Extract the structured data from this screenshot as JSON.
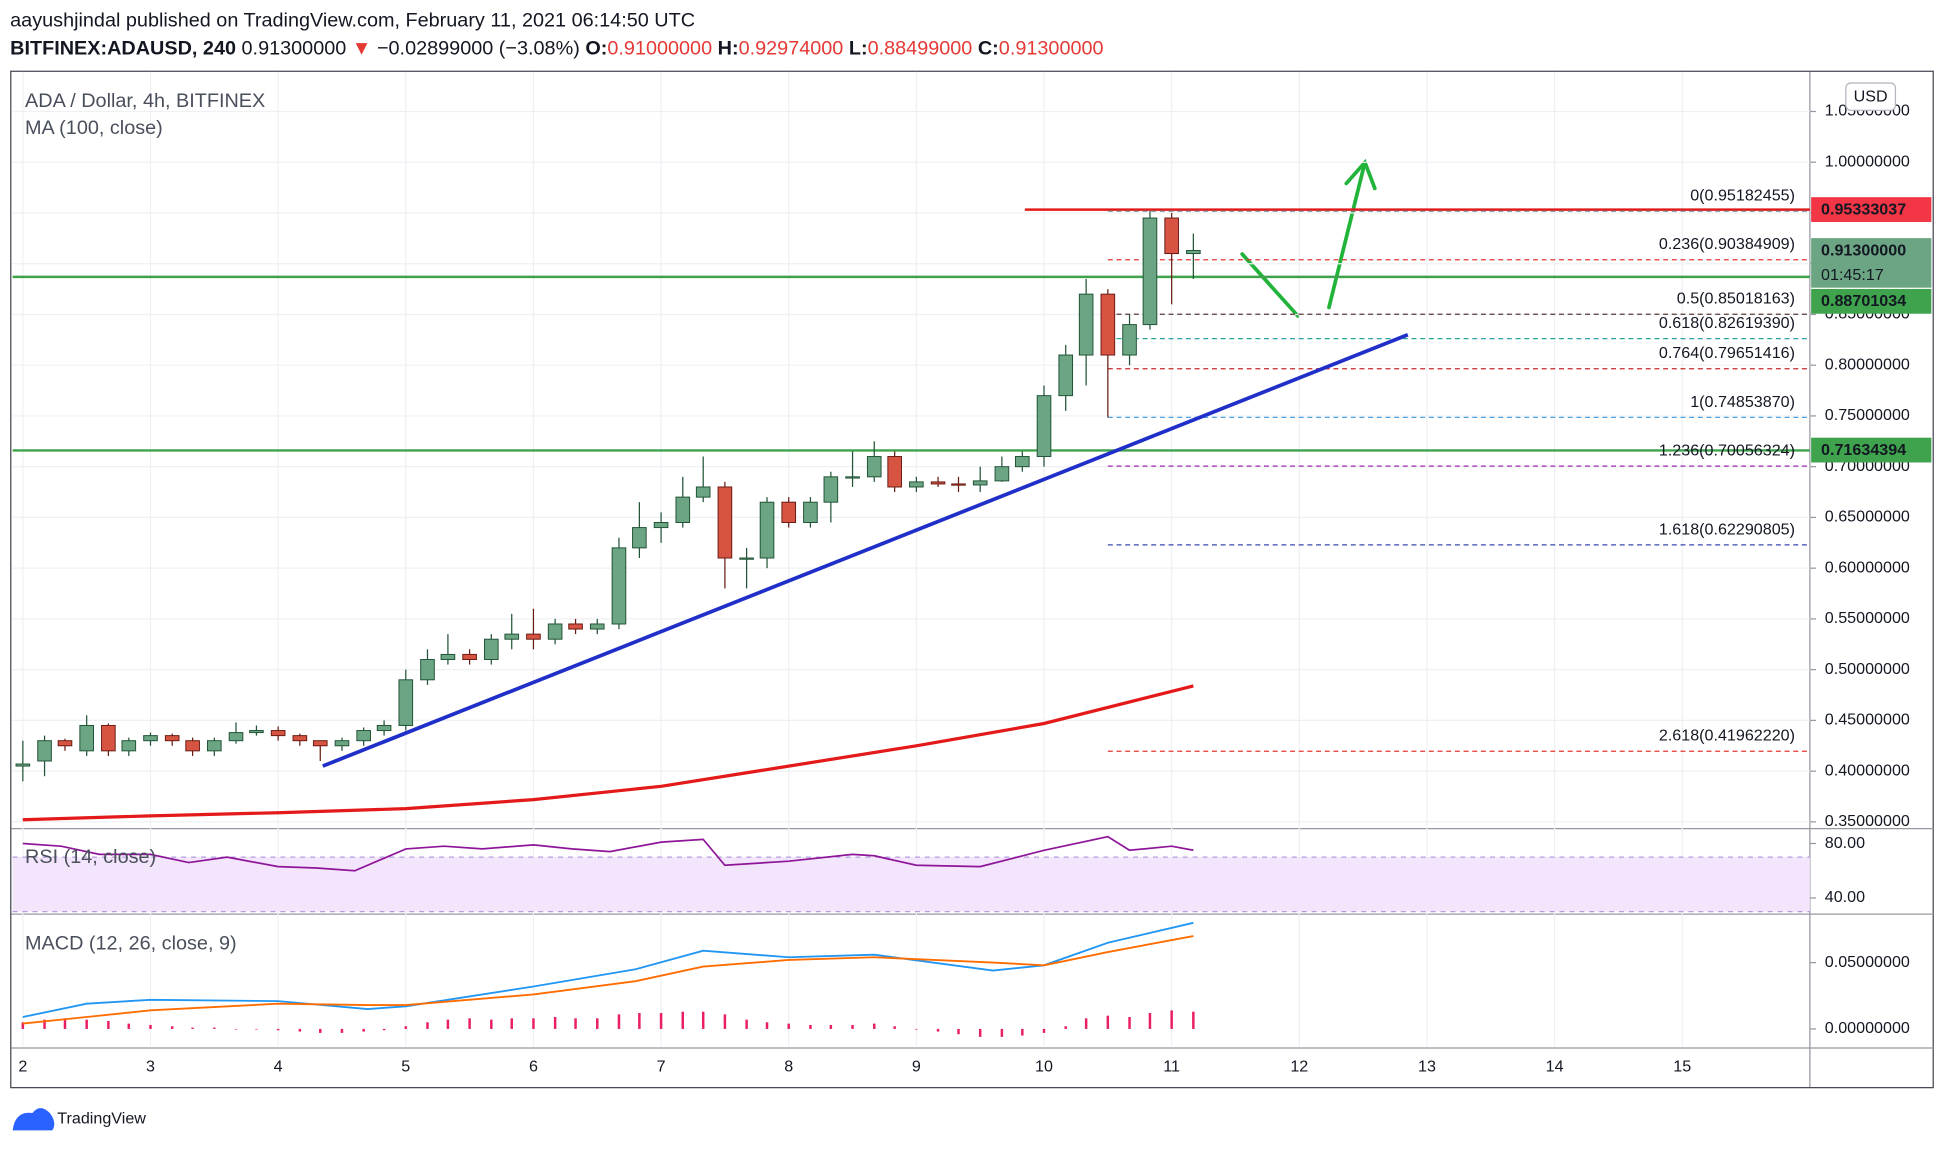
{
  "header": {
    "published": "aayushjindal published on TradingView.com, February 11, 2021 06:14:50 UTC",
    "symbol": "BITFINEX:ADAUSD, 240",
    "last": "0.91300000",
    "arrow": "▼",
    "change": "−0.02899000 (−3.08%)",
    "ohlc": [
      {
        "key": "O:",
        "value": "0.91000000"
      },
      {
        "key": "H:",
        "value": "0.92974000"
      },
      {
        "key": "L:",
        "value": "0.88499000"
      },
      {
        "key": "C:",
        "value": "0.91300000"
      }
    ]
  },
  "chart_data": {
    "type": "candlestick",
    "title": "ADA / Dollar, 4h, BITFINEX",
    "currency": "USD",
    "up_color": "#6ba583",
    "down_color": "#d75442",
    "x": [
      2,
      2.17,
      2.33,
      2.5,
      2.67,
      2.83,
      3,
      3.17,
      3.33,
      3.5,
      3.67,
      3.83,
      4,
      4.17,
      4.33,
      4.5,
      4.67,
      4.83,
      5,
      5.17,
      5.33,
      5.5,
      5.67,
      5.83,
      6,
      6.17,
      6.33,
      6.5,
      6.67,
      6.83,
      7,
      7.17,
      7.33,
      7.5,
      7.67,
      7.83,
      8,
      8.17,
      8.33,
      8.5,
      8.67,
      8.83,
      9,
      9.17,
      9.33,
      9.5,
      9.67,
      9.83,
      10,
      10.17,
      10.33,
      10.5,
      10.67,
      10.83,
      11,
      11.17
    ],
    "open": [
      0.405,
      0.41,
      0.43,
      0.42,
      0.445,
      0.42,
      0.43,
      0.435,
      0.43,
      0.42,
      0.43,
      0.438,
      0.44,
      0.435,
      0.43,
      0.425,
      0.43,
      0.44,
      0.445,
      0.49,
      0.51,
      0.515,
      0.51,
      0.53,
      0.535,
      0.53,
      0.545,
      0.54,
      0.545,
      0.62,
      0.64,
      0.645,
      0.67,
      0.68,
      0.61,
      0.61,
      0.665,
      0.645,
      0.665,
      0.69,
      0.69,
      0.71,
      0.68,
      0.685,
      0.683,
      0.682,
      0.686,
      0.7,
      0.71,
      0.77,
      0.81,
      0.87,
      0.81,
      0.84,
      0.945,
      0.91
    ],
    "high": [
      0.43,
      0.435,
      0.432,
      0.455,
      0.447,
      0.433,
      0.438,
      0.437,
      0.433,
      0.433,
      0.448,
      0.445,
      0.444,
      0.437,
      0.43,
      0.433,
      0.443,
      0.45,
      0.5,
      0.52,
      0.535,
      0.52,
      0.535,
      0.555,
      0.56,
      0.55,
      0.55,
      0.55,
      0.63,
      0.665,
      0.655,
      0.69,
      0.71,
      0.685,
      0.62,
      0.67,
      0.67,
      0.67,
      0.695,
      0.715,
      0.725,
      0.715,
      0.69,
      0.69,
      0.69,
      0.7,
      0.71,
      0.715,
      0.78,
      0.82,
      0.885,
      0.875,
      0.85,
      0.952,
      0.95,
      0.92974
    ],
    "low": [
      0.39,
      0.395,
      0.42,
      0.415,
      0.415,
      0.415,
      0.425,
      0.425,
      0.415,
      0.415,
      0.427,
      0.435,
      0.43,
      0.425,
      0.41,
      0.42,
      0.425,
      0.435,
      0.44,
      0.485,
      0.505,
      0.505,
      0.505,
      0.52,
      0.52,
      0.525,
      0.535,
      0.535,
      0.54,
      0.61,
      0.625,
      0.64,
      0.665,
      0.58,
      0.58,
      0.6,
      0.64,
      0.64,
      0.645,
      0.68,
      0.685,
      0.675,
      0.675,
      0.68,
      0.675,
      0.675,
      0.685,
      0.695,
      0.7,
      0.755,
      0.78,
      0.7485,
      0.8,
      0.835,
      0.86,
      0.88499
    ],
    "close": [
      0.407,
      0.43,
      0.425,
      0.445,
      0.42,
      0.43,
      0.435,
      0.43,
      0.42,
      0.43,
      0.438,
      0.44,
      0.435,
      0.43,
      0.425,
      0.43,
      0.44,
      0.445,
      0.49,
      0.51,
      0.515,
      0.51,
      0.53,
      0.535,
      0.53,
      0.545,
      0.54,
      0.545,
      0.62,
      0.64,
      0.645,
      0.67,
      0.68,
      0.61,
      0.61,
      0.665,
      0.645,
      0.665,
      0.69,
      0.69,
      0.71,
      0.68,
      0.685,
      0.683,
      0.682,
      0.686,
      0.7,
      0.71,
      0.77,
      0.81,
      0.87,
      0.81,
      0.84,
      0.945,
      0.91,
      0.913
    ],
    "xlim": [
      1.92,
      16.0
    ],
    "xticks": [
      2,
      3,
      4,
      5,
      6,
      7,
      8,
      9,
      10,
      11,
      12,
      13,
      14,
      15
    ],
    "ylim": [
      0.344,
      1.089
    ],
    "yticks": [
      {
        "value": 0.35,
        "label": "0.35000000"
      },
      {
        "value": 0.4,
        "label": "0.40000000"
      },
      {
        "value": 0.45,
        "label": "0.45000000"
      },
      {
        "value": 0.5,
        "label": "0.50000000"
      },
      {
        "value": 0.55,
        "label": "0.55000000"
      },
      {
        "value": 0.6,
        "label": "0.60000000"
      },
      {
        "value": 0.65,
        "label": "0.65000000"
      },
      {
        "value": 0.7,
        "label": "0.70000000"
      },
      {
        "value": 0.75,
        "label": "0.75000000"
      },
      {
        "value": 0.8,
        "label": "0.80000000"
      },
      {
        "value": 0.85,
        "label": "0.85000000"
      },
      {
        "value": 0.9,
        "label": "0.90000000"
      },
      {
        "value": 0.95,
        "label": "0.95000000"
      },
      {
        "value": 1.0,
        "label": "1.00000000"
      },
      {
        "value": 1.05,
        "label": "1.05000000"
      }
    ],
    "grid": true,
    "ma": {
      "name": "MA (100, close)",
      "color": "#e41a1a",
      "x": [
        2,
        3,
        4,
        5,
        6,
        7,
        8,
        9,
        10,
        11.17
      ],
      "values": [
        0.352,
        0.356,
        0.359,
        0.363,
        0.372,
        0.385,
        0.405,
        0.425,
        0.447,
        0.484
      ]
    },
    "levels": [
      {
        "value": 0.9533,
        "color": "#e41a1a",
        "from": 9.85
      },
      {
        "value": 0.887,
        "color": "#3fa34d",
        "from": 1.92
      },
      {
        "value": 0.716,
        "color": "#3fa34d",
        "from": 1.92
      }
    ],
    "trendline": {
      "x": [
        4.35,
        12.85
      ],
      "values": [
        0.405,
        0.83
      ],
      "color": "#1f2fc8"
    },
    "fib_from": 10.5,
    "fib": [
      {
        "label": "0(0.95182455)",
        "value": 0.95182455,
        "color": "#787b86"
      },
      {
        "label": "0.236(0.90384909)",
        "value": 0.90384909,
        "color": "#e53935"
      },
      {
        "label": "0.5(0.85018163)",
        "value": 0.85018163,
        "color": "#5d3a3a"
      },
      {
        "label": "0.618(0.82619390)",
        "value": 0.8261939,
        "color": "#26a69a"
      },
      {
        "label": "0.764(0.79651416)",
        "value": 0.79651416,
        "color": "#c62828"
      },
      {
        "label": "1(0.74853870)",
        "value": 0.7485387,
        "color": "#4fa3e0"
      },
      {
        "label": "1.236(0.70056324)",
        "value": 0.70056324,
        "color": "#9c27b0"
      },
      {
        "label": "1.618(0.62290805)",
        "value": 0.62290805,
        "color": "#3949ab"
      },
      {
        "label": "2.618(0.41962220)",
        "value": 0.4196222,
        "color": "#e53935"
      }
    ],
    "price_labels": [
      {
        "label": "0.95333037",
        "value": 0.95333037,
        "color": "#f23645"
      },
      {
        "label": "0.91300000",
        "value": 0.913,
        "color": "#6ba583",
        "countdown": "01:45:17"
      },
      {
        "label": "0.88701034",
        "value": 0.88701034,
        "color": "#3fa34d"
      },
      {
        "label": "0.71634394",
        "value": 0.71634394,
        "color": "#3fa34d"
      }
    ],
    "rsi": {
      "name": "RSI (14, close)",
      "color": "#8e1599",
      "ylim": [
        28.6,
        90.5
      ],
      "band": [
        30,
        70
      ],
      "yticks": [
        {
          "value": 40,
          "label": "40.00"
        },
        {
          "value": 80,
          "label": "80.00"
        }
      ],
      "x": [
        2,
        2.3,
        2.6,
        3,
        3.3,
        3.6,
        4,
        4.3,
        4.6,
        5,
        5.3,
        5.6,
        6,
        6.3,
        6.6,
        7,
        7.33,
        7.5,
        8,
        8.5,
        8.67,
        9,
        9.5,
        10,
        10.5,
        10.67,
        11,
        11.17
      ],
      "values": [
        80,
        78,
        72,
        72,
        66,
        70,
        63,
        62,
        60,
        76,
        78,
        76,
        79,
        76,
        74,
        81,
        83,
        64,
        67,
        72,
        71,
        64,
        63,
        75,
        85,
        75,
        78,
        75
      ]
    },
    "macd": {
      "name": "MACD (12, 26, close, 9)",
      "ylim": [
        -0.0139,
        0.0861
      ],
      "yticks": [
        {
          "value": 0,
          "label": "0.00000000"
        },
        {
          "value": 0.05,
          "label": "0.05000000"
        }
      ],
      "x": [
        2,
        2.5,
        3,
        4,
        4.7,
        5,
        6,
        6.8,
        7.33,
        8,
        8.67,
        9.6,
        10,
        10.5,
        11.17
      ],
      "series": [
        {
          "name": "MACD",
          "color": "#2196f3",
          "values": [
            0.009,
            0.019,
            0.022,
            0.021,
            0.015,
            0.017,
            0.032,
            0.045,
            0.059,
            0.054,
            0.056,
            0.044,
            0.048,
            0.065,
            0.08
          ]
        },
        {
          "name": "Signal",
          "color": "#ff6d00",
          "values": [
            0.004,
            0.009,
            0.014,
            0.019,
            0.018,
            0.018,
            0.026,
            0.036,
            0.047,
            0.052,
            0.054,
            0.05,
            0.048,
            0.058,
            0.07
          ]
        }
      ],
      "histogram_color": "#e91e63",
      "histogram": [
        0.005,
        0.007,
        0.008,
        0.007,
        0.006,
        0.004,
        0.003,
        0.002,
        0.001,
        0.001,
        0,
        0,
        -0.001,
        -0.002,
        -0.003,
        -0.003,
        -0.002,
        -0.001,
        0.002,
        0.005,
        0.007,
        0.008,
        0.007,
        0.008,
        0.008,
        0.009,
        0.008,
        0.008,
        0.011,
        0.012,
        0.012,
        0.013,
        0.013,
        0.011,
        0.007,
        0.005,
        0.004,
        0.003,
        0.003,
        0.003,
        0.004,
        0.002,
        0,
        -0.002,
        -0.004,
        -0.006,
        -0.006,
        -0.005,
        -0.003,
        0.002,
        0.008,
        0.01,
        0.009,
        0.012,
        0.014,
        0.013
      ]
    },
    "brand": "TradingView"
  }
}
